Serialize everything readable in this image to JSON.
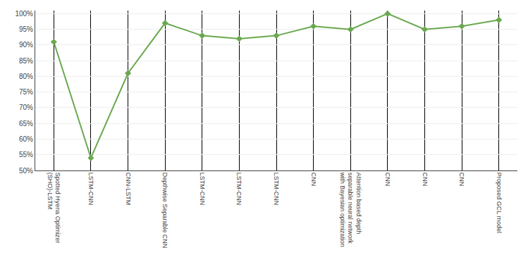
{
  "chart_data": {
    "type": "line",
    "categories": [
      "Spotted Hyena Optimizer\n(SHO)-LSTM",
      "LSTM-CNN",
      "CNN-LSTM",
      "Depthwise Separable CNN",
      "LSTM-CNN",
      "LSTM-CNN",
      "LSTM-CNN",
      "CNN",
      "Attention based depth\nseparable neural network\nwith Bayesian optimization",
      "CNN",
      "CNN",
      "CNN",
      "Proposed GCL model"
    ],
    "values": [
      91,
      54,
      81,
      97,
      93,
      92,
      93,
      96,
      95,
      100,
      95,
      96,
      98
    ],
    "color": "#6aa84f",
    "marker": "diamond",
    "ylim": [
      50,
      101
    ],
    "yticks": [
      {
        "value": 50,
        "label": "50%"
      },
      {
        "value": 55,
        "label": "55%"
      },
      {
        "value": 60,
        "label": "60%"
      },
      {
        "value": 65,
        "label": "65%"
      },
      {
        "value": 70,
        "label": "70%"
      },
      {
        "value": 75,
        "label": "75%"
      },
      {
        "value": 80,
        "label": "80%"
      },
      {
        "value": 85,
        "label": "85%"
      },
      {
        "value": 90,
        "label": "90%"
      },
      {
        "value": 95,
        "label": "95%"
      },
      {
        "value": 100,
        "label": "100%"
      }
    ],
    "grid": true
  }
}
